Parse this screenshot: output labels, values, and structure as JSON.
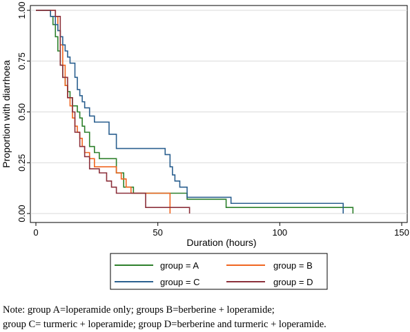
{
  "chart_data": {
    "type": "line",
    "xlabel": "Duration (hours)",
    "ylabel": "Proportion with diarrhoea",
    "xlim": [
      0,
      150
    ],
    "ylim": [
      0,
      1
    ],
    "xticks": [
      0,
      50,
      100,
      150
    ],
    "yticks": [
      0.0,
      0.25,
      0.5,
      0.75,
      1.0
    ],
    "xtick_labels": [
      "0",
      "50",
      "100",
      "150"
    ],
    "ytick_labels": [
      "0.00",
      "0.25",
      "0.50",
      "0.75",
      "1.00"
    ],
    "grid": "horizontal",
    "legend_position": "bottom",
    "series": [
      {
        "name": "group = A",
        "color": "#2c7f2a",
        "step": true,
        "x": [
          0,
          6,
          7,
          8,
          9,
          10,
          11,
          12,
          13,
          14,
          15,
          17,
          18,
          19,
          20,
          22,
          24,
          26,
          33,
          36,
          40,
          62,
          78,
          130
        ],
        "y": [
          1.0,
          0.97,
          0.93,
          0.87,
          0.8,
          0.73,
          0.67,
          0.63,
          0.6,
          0.57,
          0.53,
          0.5,
          0.47,
          0.43,
          0.4,
          0.33,
          0.3,
          0.27,
          0.2,
          0.13,
          0.1,
          0.07,
          0.03,
          0.0
        ]
      },
      {
        "name": "group = B",
        "color": "#f0641e",
        "step": true,
        "x": [
          0,
          8,
          9,
          10,
          11,
          12,
          13,
          14,
          15,
          16,
          17,
          18,
          19,
          20,
          22,
          24,
          33,
          35,
          37,
          39,
          55
        ],
        "y": [
          1.0,
          0.97,
          0.9,
          0.83,
          0.73,
          0.63,
          0.57,
          0.53,
          0.47,
          0.43,
          0.4,
          0.37,
          0.33,
          0.3,
          0.27,
          0.23,
          0.2,
          0.17,
          0.13,
          0.1,
          0.0
        ]
      },
      {
        "name": "group = C",
        "color": "#2a5f8f",
        "step": true,
        "x": [
          0,
          6,
          8,
          9,
          10,
          11,
          12,
          13,
          14,
          16,
          17,
          18,
          19,
          20,
          22,
          24,
          30,
          33,
          38,
          53,
          55,
          56,
          57,
          59,
          62,
          80,
          126
        ],
        "y": [
          1.0,
          0.97,
          0.93,
          0.9,
          0.87,
          0.83,
          0.8,
          0.77,
          0.74,
          0.67,
          0.61,
          0.58,
          0.55,
          0.52,
          0.48,
          0.45,
          0.39,
          0.32,
          0.32,
          0.29,
          0.23,
          0.19,
          0.16,
          0.13,
          0.08,
          0.05,
          0.0
        ]
      },
      {
        "name": "group = D",
        "color": "#8b2f3a",
        "step": true,
        "x": [
          0,
          8,
          10,
          11,
          13,
          15,
          16,
          18,
          20,
          22,
          26,
          29,
          31,
          33,
          45,
          63
        ],
        "y": [
          1.0,
          0.97,
          0.73,
          0.67,
          0.57,
          0.5,
          0.4,
          0.33,
          0.28,
          0.22,
          0.2,
          0.16,
          0.13,
          0.1,
          0.03,
          0.0
        ]
      }
    ]
  },
  "legend": {
    "items": [
      {
        "label": "group = A",
        "color": "#2c7f2a"
      },
      {
        "label": "group = B",
        "color": "#f0641e"
      },
      {
        "label": "group = C",
        "color": "#2a5f8f"
      },
      {
        "label": "group = D",
        "color": "#8b2f3a"
      }
    ]
  },
  "note": {
    "line1": "Note: group A=loperamide only; groups B=berberine + loperamide;",
    "line2": "group C= turmeric + loperamide; group D=berberine and turmeric + loperamide."
  }
}
